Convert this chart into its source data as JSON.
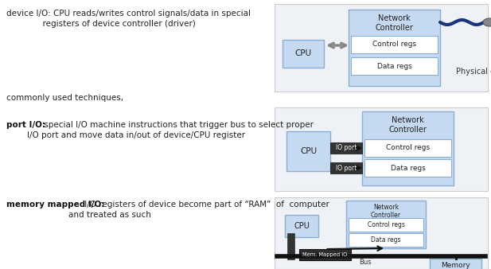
{
  "light_blue": "#c5d9f1",
  "mid_blue": "#8aaed4",
  "white": "#ffffff",
  "bg_panel": "#eef2f7",
  "text_dark": "#222222",
  "text_black": "#111111",
  "t1l1": "device I/O: CPU reads/writes control signals/data in special",
  "t1l2": "registers of device controller (driver)",
  "t2": "commonly used techniques,",
  "t3_bold": "port I/O:",
  "t3l1": " special I/O machine instructions that trigger bus to select proper",
  "t3l2": "I/O port and move data in/out of device/CPU register",
  "t4_bold": "memory mapped I/O:",
  "t4l1": " I/O registers of device become part of “RAM”  of  computer",
  "t4l2": "and treated as such",
  "fig_w": 6.17,
  "fig_h": 3.38,
  "dpi": 100
}
